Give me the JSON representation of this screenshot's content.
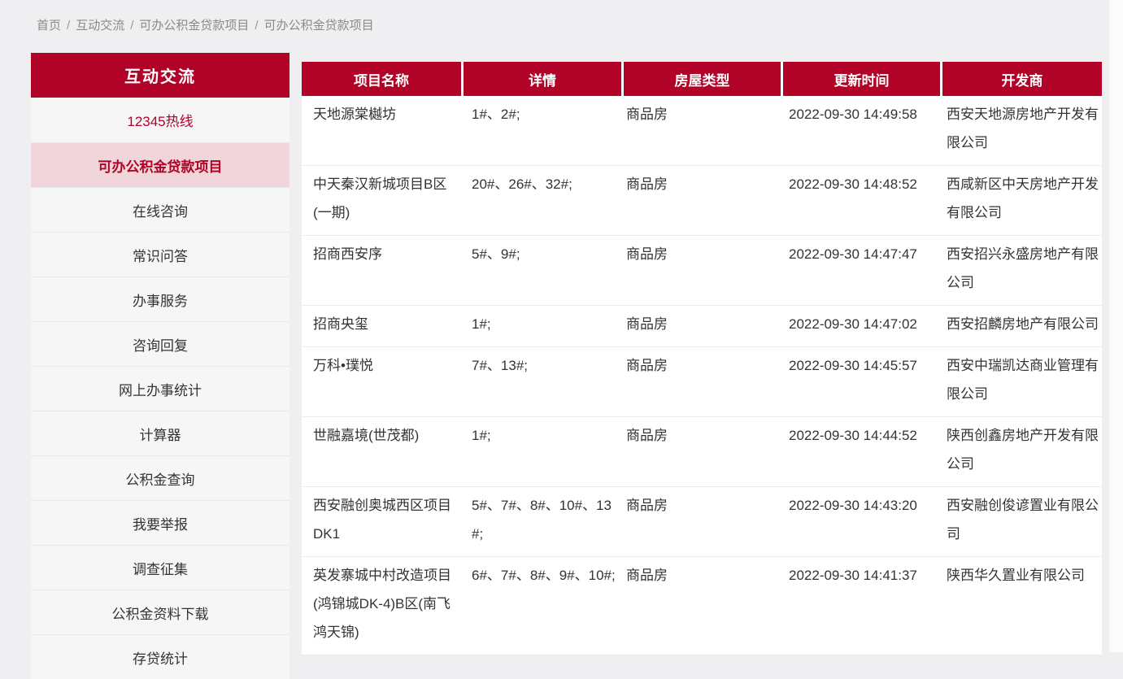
{
  "page": {
    "accent_color": "#b10328",
    "accent_light_color": "#f0d6da",
    "background_color": "#efeef0",
    "sidebar_bg_color": "#f7f6f7"
  },
  "breadcrumb": {
    "separator": "/",
    "items": [
      "首页",
      "互动交流",
      "可办公积金贷款项目",
      "可办公积金贷款项目"
    ]
  },
  "sidebar": {
    "title": "互动交流",
    "items": [
      {
        "label": "12345热线",
        "style": "red-text"
      },
      {
        "label": "可办公积金贷款项目",
        "style": "active"
      },
      {
        "label": "在线咨询",
        "style": "normal"
      },
      {
        "label": "常识问答",
        "style": "normal"
      },
      {
        "label": "办事服务",
        "style": "normal"
      },
      {
        "label": "咨询回复",
        "style": "normal"
      },
      {
        "label": "网上办事统计",
        "style": "normal"
      },
      {
        "label": "计算器",
        "style": "normal"
      },
      {
        "label": "公积金查询",
        "style": "normal"
      },
      {
        "label": "我要举报",
        "style": "normal"
      },
      {
        "label": "调查征集",
        "style": "normal"
      },
      {
        "label": "公积金资料下载",
        "style": "normal"
      },
      {
        "label": "存贷统计",
        "style": "normal"
      }
    ]
  },
  "table": {
    "columns": [
      "项目名称",
      "详情",
      "房屋类型",
      "更新时间",
      "开发商"
    ],
    "rows": [
      {
        "name": "天地源棠樾坊",
        "detail": "1#、2#;",
        "type": "商品房",
        "updated": "2022-09-30 14:49:58",
        "developer": "西安天地源房地产开发有限公司"
      },
      {
        "name": "中天秦汉新城项目B区(一期)",
        "detail": "20#、26#、32#;",
        "type": "商品房",
        "updated": "2022-09-30 14:48:52",
        "developer": "西咸新区中天房地产开发有限公司"
      },
      {
        "name": "招商西安序",
        "detail": "5#、9#;",
        "type": "商品房",
        "updated": "2022-09-30 14:47:47",
        "developer": "西安招兴永盛房地产有限公司"
      },
      {
        "name": "招商央玺",
        "detail": "1#;",
        "type": "商品房",
        "updated": "2022-09-30 14:47:02",
        "developer": "西安招麟房地产有限公司"
      },
      {
        "name": "万科•璞悦",
        "detail": "7#、13#;",
        "type": "商品房",
        "updated": "2022-09-30 14:45:57",
        "developer": "西安中瑞凯达商业管理有限公司"
      },
      {
        "name": "世融嘉境(世茂都)",
        "detail": "1#;",
        "type": "商品房",
        "updated": "2022-09-30 14:44:52",
        "developer": "陕西创鑫房地产开发有限公司"
      },
      {
        "name": "西安融创奥城西区项目DK1",
        "detail": "5#、7#、8#、10#、13#;",
        "type": "商品房",
        "updated": "2022-09-30 14:43:20",
        "developer": "西安融创俊谚置业有限公司"
      },
      {
        "name": "英发寨城中村改造项目(鸿锦城DK-4)B区(南飞鸿天锦)",
        "detail": "6#、7#、8#、9#、10#;",
        "type": "商品房",
        "updated": "2022-09-30 14:41:37",
        "developer": "陕西华久置业有限公司"
      }
    ]
  }
}
